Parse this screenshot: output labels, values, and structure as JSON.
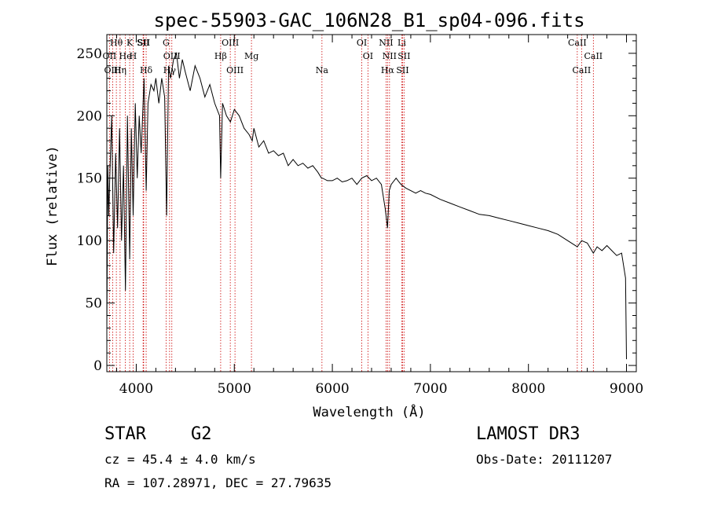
{
  "chart_data": {
    "type": "line",
    "title": "spec-55903-GAC_106N28_B1_sp04-096.fits",
    "xlabel": "Wavelength (Å)",
    "ylabel": "Flux (relative)",
    "xlim": [
      3700,
      9100
    ],
    "ylim": [
      -5,
      265
    ],
    "x_ticks": [
      4000,
      5000,
      6000,
      7000,
      8000,
      9000
    ],
    "y_ticks": [
      0,
      50,
      100,
      150,
      200,
      250
    ],
    "series": [
      {
        "name": "spectrum",
        "x": [
          3700,
          3710,
          3720,
          3730,
          3750,
          3770,
          3790,
          3810,
          3830,
          3850,
          3870,
          3890,
          3910,
          3933,
          3950,
          3968,
          3990,
          4010,
          4030,
          4050,
          4080,
          4101,
          4120,
          4150,
          4180,
          4200,
          4230,
          4260,
          4290,
          4310,
          4330,
          4350,
          4380,
          4410,
          4440,
          4470,
          4500,
          4550,
          4600,
          4650,
          4700,
          4750,
          4800,
          4850,
          4861,
          4880,
          4920,
          4960,
          5000,
          5050,
          5100,
          5150,
          5183,
          5200,
          5250,
          5300,
          5350,
          5400,
          5450,
          5500,
          5550,
          5600,
          5650,
          5700,
          5750,
          5800,
          5850,
          5890,
          5900,
          5950,
          6000,
          6050,
          6100,
          6150,
          6200,
          6250,
          6300,
          6350,
          6400,
          6450,
          6500,
          6540,
          6563,
          6580,
          6600,
          6650,
          6700,
          6750,
          6800,
          6850,
          6900,
          6950,
          7000,
          7100,
          7200,
          7300,
          7400,
          7500,
          7600,
          7700,
          7800,
          7900,
          8000,
          8100,
          8200,
          8300,
          8400,
          8498,
          8542,
          8600,
          8662,
          8700,
          8750,
          8800,
          8850,
          8900,
          8950,
          8990,
          9000
        ],
        "values": [
          30,
          160,
          120,
          150,
          200,
          90,
          170,
          110,
          190,
          100,
          160,
          60,
          200,
          85,
          190,
          120,
          210,
          150,
          200,
          170,
          230,
          140,
          210,
          225,
          220,
          230,
          210,
          230,
          215,
          120,
          240,
          230,
          245,
          250,
          230,
          245,
          235,
          220,
          240,
          230,
          215,
          225,
          210,
          200,
          150,
          210,
          200,
          195,
          205,
          200,
          190,
          185,
          180,
          190,
          175,
          180,
          170,
          172,
          168,
          170,
          160,
          165,
          160,
          162,
          158,
          160,
          155,
          150,
          150,
          148,
          148,
          150,
          147,
          148,
          150,
          145,
          150,
          152,
          148,
          150,
          145,
          125,
          110,
          140,
          145,
          150,
          145,
          142,
          140,
          138,
          140,
          138,
          137,
          133,
          130,
          127,
          124,
          121,
          120,
          118,
          116,
          114,
          112,
          110,
          108,
          105,
          100,
          95,
          100,
          98,
          90,
          95,
          92,
          96,
          92,
          88,
          90,
          70,
          5
        ]
      }
    ],
    "lines": [
      {
        "label": "Hθ",
        "wl": 3797
      },
      {
        "label": "OII",
        "wl": 3727
      },
      {
        "label": "OIII",
        "wl": 3760
      },
      {
        "label": "K",
        "wl": 3933
      },
      {
        "label": "He",
        "wl": 3889
      },
      {
        "label": "Hη",
        "wl": 3835
      },
      {
        "label": "SII",
        "wl": 4070
      },
      {
        "label": "H",
        "wl": 3968
      },
      {
        "label": "Hδ",
        "wl": 4101
      },
      {
        "label": "SII",
        "wl": 4076
      },
      {
        "label": "OIII",
        "wl": 4363
      },
      {
        "label": "Hγ",
        "wl": 4340
      },
      {
        "label": "G",
        "wl": 4304
      },
      {
        "label": "Hβ",
        "wl": 4861
      },
      {
        "label": "OIII",
        "wl": 5007
      },
      {
        "label": "OIII",
        "wl": 4959
      },
      {
        "label": "Mg",
        "wl": 5175
      },
      {
        "label": "Na",
        "wl": 5894
      },
      {
        "label": "OI",
        "wl": 6300
      },
      {
        "label": "OI",
        "wl": 6363
      },
      {
        "label": "Hα",
        "wl": 6563
      },
      {
        "label": "NII",
        "wl": 6548
      },
      {
        "label": "NII",
        "wl": 6583
      },
      {
        "label": "SII",
        "wl": 6716
      },
      {
        "label": "Li",
        "wl": 6708
      },
      {
        "label": "SII",
        "wl": 6731
      },
      {
        "label": "CaII",
        "wl": 8542
      },
      {
        "label": "CaII",
        "wl": 8498
      },
      {
        "label": "CaII",
        "wl": 8662
      }
    ]
  },
  "info": {
    "class": "STAR",
    "subclass": "G2",
    "survey": "LAMOST DR3",
    "cz": "cz = 45.4 ± 4.0 km/s",
    "obs_date": "Obs-Date: 20111207",
    "coords": "RA = 107.28971, DEC =  27.79635"
  },
  "colors": {
    "line_marker": "#cc0000",
    "spectrum": "#000000",
    "axes": "#000000"
  }
}
